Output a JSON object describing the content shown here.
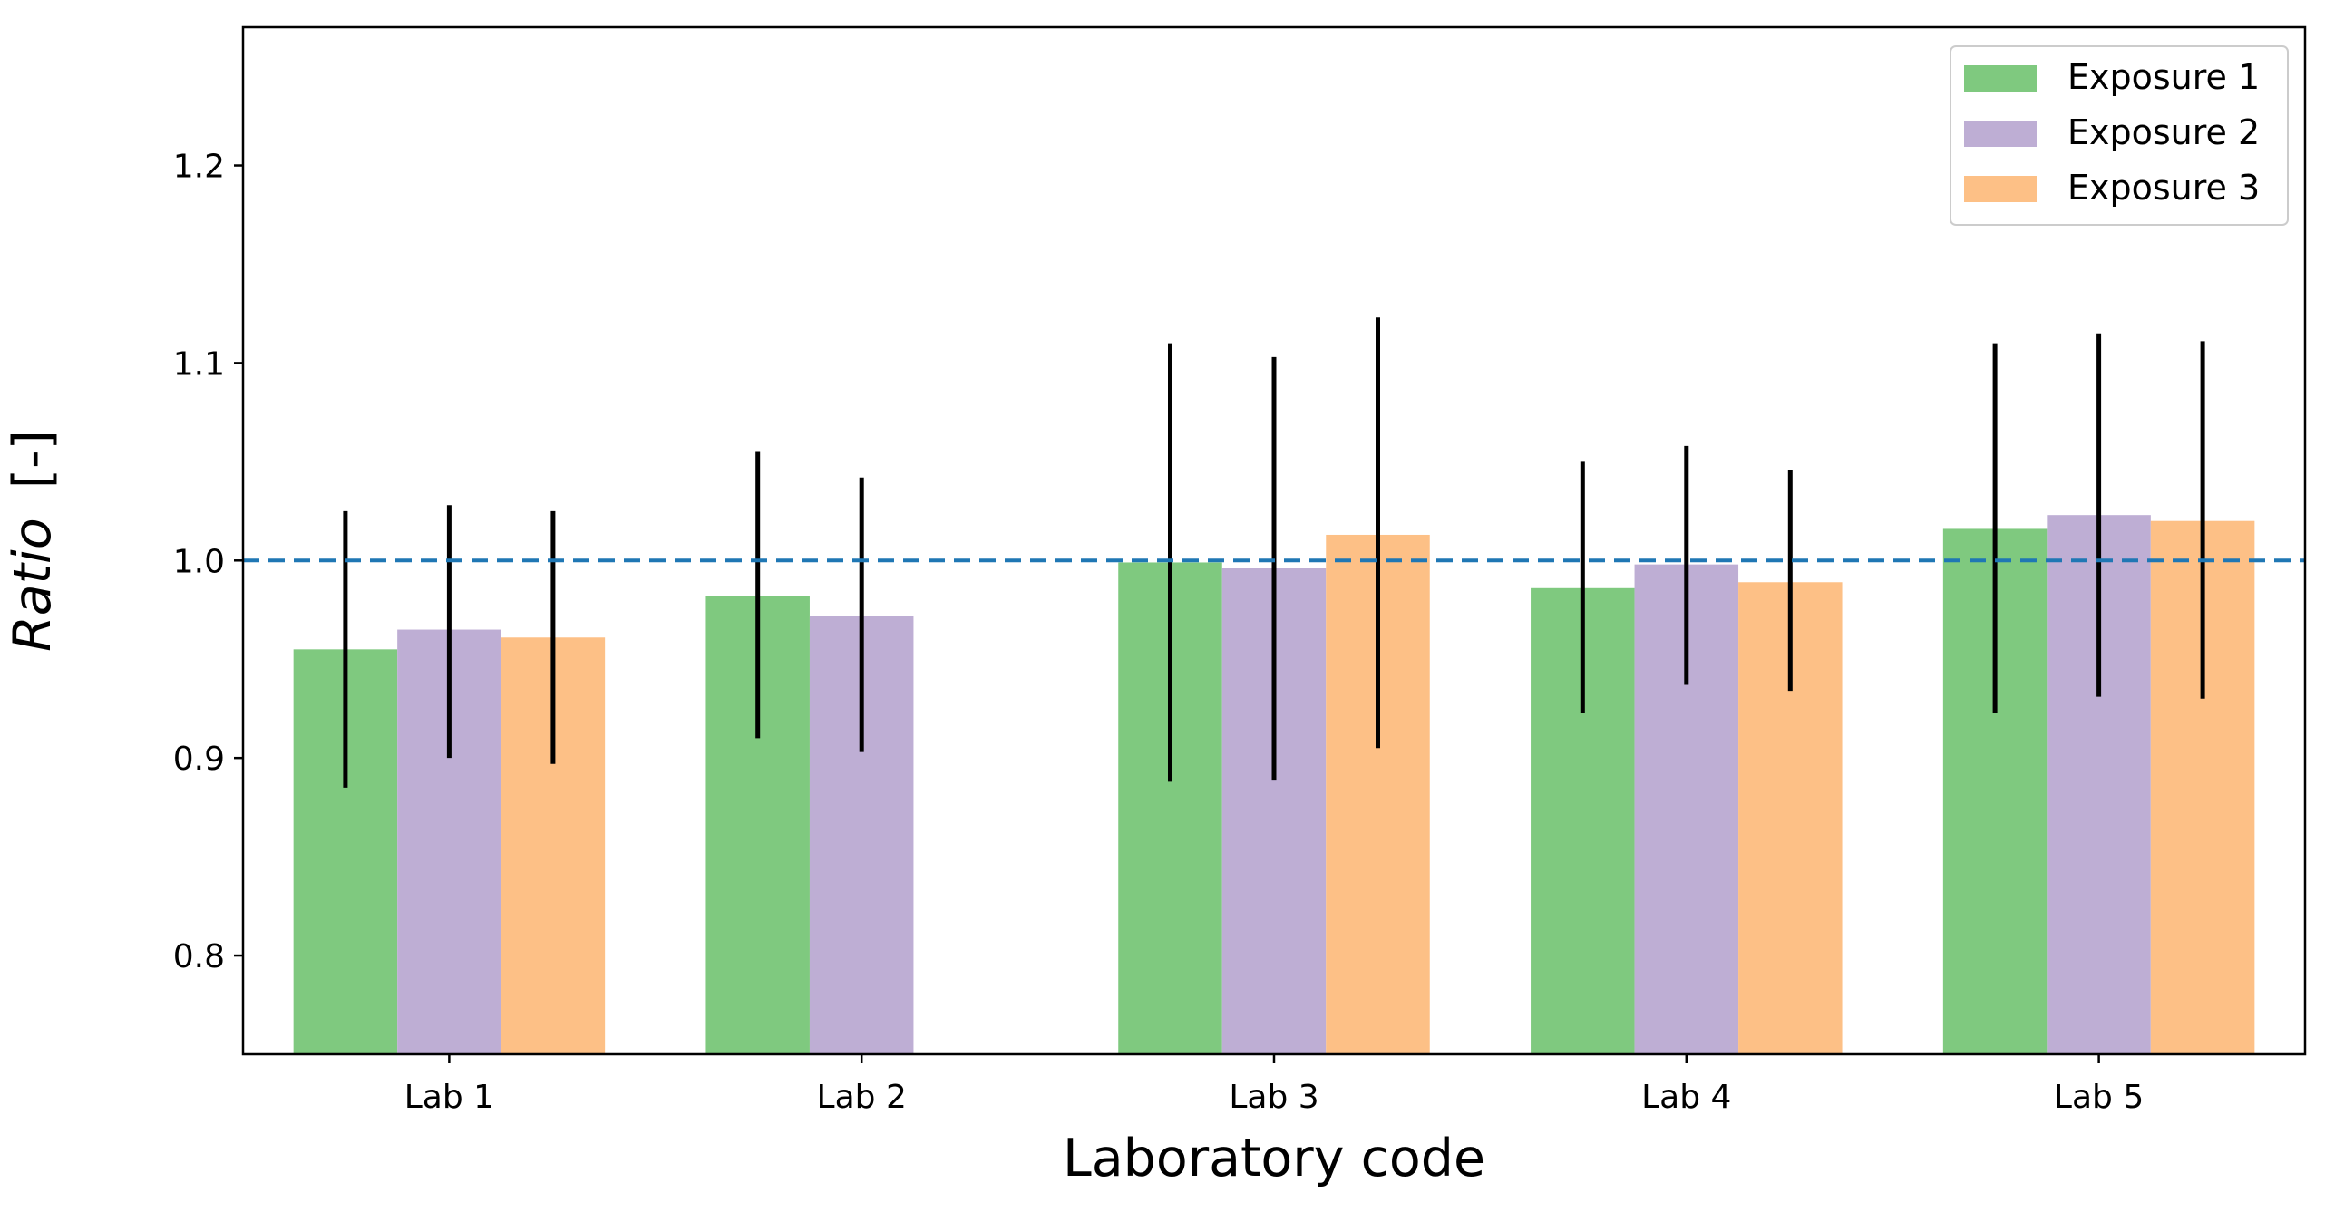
{
  "chart_data": {
    "type": "bar",
    "title": "",
    "xlabel": "Laboratory code",
    "ylabel": "Ratio",
    "ylabel_unit": "[-]",
    "categories": [
      "Lab 1",
      "Lab 2",
      "Lab 3",
      "Lab 4",
      "Lab 5"
    ],
    "ylim": [
      0.75,
      1.27
    ],
    "yticks": [
      0.8,
      0.9,
      1.0,
      1.1,
      1.2
    ],
    "ytick_labels": [
      "0.8",
      "0.9",
      "1.0",
      "1.1",
      "1.2"
    ],
    "grid": false,
    "legend_position": "top-right",
    "reference_line": {
      "y": 1.0,
      "style": "dashed",
      "color": "#1f77b4"
    },
    "series": [
      {
        "name": "Exposure 1",
        "color": "#7fc97f",
        "values": [
          0.955,
          0.982,
          0.999,
          0.986,
          1.016
        ],
        "err_low": [
          0.885,
          0.91,
          0.888,
          0.923,
          0.923
        ],
        "err_high": [
          1.025,
          1.055,
          1.11,
          1.05,
          1.11
        ]
      },
      {
        "name": "Exposure 2",
        "color": "#beaed4",
        "values": [
          0.965,
          0.972,
          0.996,
          0.998,
          1.023
        ],
        "err_low": [
          0.9,
          0.903,
          0.889,
          0.937,
          0.931
        ],
        "err_high": [
          1.028,
          1.042,
          1.103,
          1.058,
          1.115
        ]
      },
      {
        "name": "Exposure 3",
        "color": "#fdc086",
        "values": [
          0.961,
          null,
          1.013,
          0.989,
          1.02
        ],
        "err_low": [
          0.897,
          null,
          0.905,
          0.934,
          0.93
        ],
        "err_high": [
          1.025,
          null,
          1.123,
          1.046,
          1.111
        ]
      }
    ]
  }
}
